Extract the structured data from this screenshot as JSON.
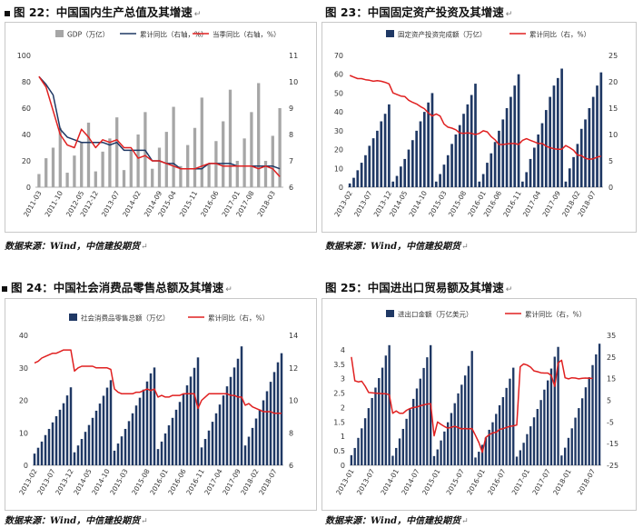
{
  "panels": [
    {
      "title": "图 22：中国国内生产总值及其增速",
      "source": "数据来源：Wind，中信建投期货",
      "chart_data": {
        "type": "bar",
        "title": "图 22：中国国内生产总值及其增速",
        "x_tick_labels": [
          "2011-03",
          "2011-10",
          "2012-05",
          "2012-12",
          "2013-07",
          "2014-02",
          "2014-09",
          "2015-04",
          "2015-11",
          "2016-06",
          "2017-01",
          "2017-08",
          "2018-03"
        ],
        "left_axis": {
          "ylim": [
            0,
            100
          ],
          "ticks": [
            0,
            20,
            40,
            60,
            80,
            100
          ]
        },
        "right_axis": {
          "ylim": [
            6,
            11
          ],
          "ticks": [
            6,
            7,
            8,
            9,
            10,
            11
          ]
        },
        "series": [
          {
            "name": "GDP（万亿）",
            "type": "bar",
            "axis": "left",
            "color": "#a6a6a6",
            "values": [
              10,
              22,
              30,
              45,
              11,
              24,
              34,
              49,
              12,
              27,
              37,
              53,
              13,
              28,
              40,
              57,
              14,
              30,
              42,
              61,
              16,
              32,
              45,
              68,
              18,
              35,
              50,
              74,
              20,
              37,
              57,
              79,
              20,
              39,
              60
            ]
          },
          {
            "name": "累计同比（右轴，%）",
            "type": "line",
            "axis": "right",
            "color": "#1f3864",
            "values": [
              10.2,
              9.9,
              9.5,
              8.2,
              7.9,
              7.8,
              7.7,
              7.7,
              7.7,
              7.7,
              7.6,
              7.7,
              7.4,
              7.4,
              7.4,
              7.4,
              7.0,
              7.0,
              6.9,
              6.9,
              6.7,
              6.7,
              6.7,
              6.7,
              6.9,
              6.9,
              6.9,
              6.9,
              6.8,
              6.8,
              6.8,
              6.8,
              6.8,
              6.8,
              6.7
            ]
          },
          {
            "name": "当季同比（右轴，%）",
            "type": "line",
            "axis": "right",
            "color": "#e02020",
            "values": [
              10.2,
              9.8,
              8.9,
              8.0,
              7.6,
              7.5,
              8.2,
              7.9,
              7.5,
              7.8,
              7.7,
              7.8,
              7.5,
              7.5,
              7.1,
              7.2,
              7.0,
              7.0,
              6.9,
              6.8,
              6.7,
              6.7,
              6.7,
              6.8,
              6.9,
              6.9,
              6.8,
              6.8,
              6.8,
              6.8,
              6.8,
              6.7,
              6.8,
              6.7,
              6.4
            ]
          }
        ]
      }
    },
    {
      "title": "图 23：中国固定资产投资及其增速",
      "source": "数据来源：Wind，中信建投期货",
      "chart_data": {
        "type": "bar",
        "title": "图 23：中国固定资产投资及其增速",
        "x_tick_labels": [
          "2013-02",
          "2013-07",
          "2013-12",
          "2014-05",
          "2014-10",
          "2015-03",
          "2015-08",
          "2016-01",
          "2016-06",
          "2016-11",
          "2017-04",
          "2017-09",
          "2018-02",
          "2018-07"
        ],
        "left_axis": {
          "ylim": [
            0,
            70
          ],
          "ticks": [
            0,
            10,
            20,
            30,
            40,
            50,
            60,
            70
          ]
        },
        "right_axis": {
          "ylim": [
            0,
            25
          ],
          "ticks": [
            0,
            5,
            10,
            15,
            20,
            25
          ]
        },
        "series": [
          {
            "name": "固定资产投资完成额（万亿）",
            "type": "bar",
            "axis": "left",
            "color": "#1f3864",
            "values": [
              2,
              5,
              9,
              13,
              17,
              22,
              26,
              30,
              35,
              39,
              44,
              3,
              6,
              11,
              15,
              20,
              25,
              30,
              35,
              40,
              45,
              50,
              3,
              7,
              12,
              17,
              23,
              28,
              33,
              39,
              44,
              49,
              55,
              3,
              7,
              13,
              18,
              24,
              30,
              36,
              42,
              48,
              54,
              60,
              3,
              8,
              15,
              21,
              28,
              34,
              41,
              48,
              54,
              58,
              63,
              3,
              10,
              16,
              23,
              31,
              36,
              42,
              48,
              54,
              61
            ]
          },
          {
            "name": "累计同比（右，%）",
            "type": "line",
            "axis": "right",
            "color": "#e02020",
            "values": [
              21.2,
              20.9,
              20.6,
              20.6,
              20.4,
              20.3,
              20.1,
              20.2,
              20.1,
              19.9,
              19.6,
              17.9,
              17.6,
              17.3,
              17.2,
              16.5,
              16.1,
              15.8,
              15.3,
              14.9,
              14.1,
              13.5,
              13.9,
              13.5,
              12.0,
              11.4,
              11.2,
              10.9,
              10.3,
              10.2,
              10.3,
              10.2,
              10.0,
              10.2,
              10.7,
              10.5,
              9.6,
              9.0,
              8.1,
              8.1,
              8.2,
              8.3,
              8.3,
              8.1,
              8.9,
              9.2,
              8.9,
              8.6,
              8.3,
              8.3,
              7.8,
              7.5,
              7.3,
              7.2,
              7.2,
              7.9,
              7.5,
              7.0,
              6.1,
              6.0,
              5.5,
              5.3,
              5.4,
              5.7,
              5.9
            ]
          }
        ]
      }
    },
    {
      "title": "图 24：中国社会消费品零售总额及其增速",
      "source": "数据来源：Wind，中信建投期货",
      "chart_data": {
        "type": "bar",
        "title": "图 24：中国社会消费品零售总额及其增速",
        "x_tick_labels": [
          "2013-02",
          "2013-07",
          "2013-12",
          "2014-05",
          "2014-10",
          "2015-03",
          "2015-08",
          "2016-01",
          "2016-06",
          "2016-11",
          "2017-04",
          "2017-09",
          "2018-02",
          "2018-07"
        ],
        "left_axis": {
          "ylim": [
            0,
            40
          ],
          "ticks": [
            0,
            10,
            20,
            30,
            40
          ]
        },
        "right_axis": {
          "ylim": [
            6,
            14
          ],
          "ticks": [
            6,
            8,
            10,
            12,
            14
          ]
        },
        "series": [
          {
            "name": "社会消费品零售总额（万亿）",
            "type": "bar",
            "axis": "left",
            "color": "#1f3864",
            "values": [
              3.6,
              5.4,
              7.3,
              9.3,
              11.2,
              13.2,
              15.1,
              17.1,
              19.1,
              21.5,
              24.0,
              4.0,
              6.1,
              8.1,
              10.3,
              12.4,
              14.6,
              16.8,
              19.0,
              21.4,
              23.9,
              26.2,
              4.5,
              6.7,
              8.9,
              11.2,
              13.6,
              16.0,
              18.4,
              20.8,
              23.3,
              25.8,
              28.3,
              30.1,
              5.0,
              7.3,
              9.8,
              12.3,
              14.6,
              17.1,
              19.5,
              22.0,
              24.6,
              27.3,
              30.0,
              33.2,
              5.5,
              8.1,
              10.7,
              13.4,
              16.0,
              18.7,
              21.5,
              24.3,
              27.2,
              30.1,
              32.8,
              36.6,
              6.1,
              8.8,
              11.5,
              14.4,
              17.2,
              20.0,
              22.8,
              25.7,
              28.7,
              31.7,
              34.5
            ]
          },
          {
            "name": "累计同比（右，%）",
            "type": "line",
            "axis": "right",
            "color": "#e02020",
            "values": [
              12.3,
              12.4,
              12.6,
              12.7,
              12.8,
              12.9,
              12.9,
              13.0,
              13.1,
              13.1,
              13.1,
              11.8,
              12.0,
              12.1,
              12.1,
              12.1,
              12.1,
              12.0,
              12.0,
              12.0,
              12.0,
              11.9,
              10.7,
              10.5,
              10.4,
              10.4,
              10.4,
              10.4,
              10.5,
              10.5,
              10.6,
              10.7,
              10.6,
              10.7,
              10.2,
              10.3,
              10.2,
              10.2,
              10.3,
              10.3,
              10.3,
              10.4,
              10.4,
              10.4,
              10.4,
              9.5,
              10.0,
              10.2,
              10.4,
              10.4,
              10.4,
              10.4,
              10.4,
              10.4,
              10.3,
              10.3,
              10.2,
              10.2,
              9.7,
              9.8,
              9.6,
              9.5,
              9.4,
              9.3,
              9.3,
              9.3,
              9.2,
              9.2,
              9.2
            ]
          }
        ]
      }
    },
    {
      "title": "图 25：中国进出口贸易额及其增速",
      "source": "数据来源：Wind，中信建投期货",
      "chart_data": {
        "type": "bar",
        "title": "图 25：中国进出口贸易额及其增速",
        "x_tick_labels": [
          "2013-01",
          "2013-07",
          "2014-01",
          "2014-07",
          "2015-01",
          "2015-07",
          "2016-01",
          "2016-07",
          "2017-01",
          "2017-07",
          "2018-01",
          "2018-07"
        ],
        "left_axis": {
          "ylim": [
            0,
            4.5
          ],
          "ticks": [
            0,
            0.5,
            1,
            1.5,
            2,
            2.5,
            3,
            3.5,
            4
          ]
        },
        "right_axis": {
          "ylim": [
            -25,
            35
          ],
          "ticks": [
            -25,
            -15,
            -5,
            5,
            15,
            25,
            35
          ]
        },
        "series": [
          {
            "name": "进出口金额（万亿美元）",
            "type": "bar",
            "axis": "left",
            "color": "#1f3864",
            "values": [
              0.35,
              0.6,
              0.95,
              1.28,
              1.63,
              1.98,
              2.33,
              2.69,
              3.02,
              3.38,
              3.8,
              4.16,
              0.33,
              0.6,
              0.93,
              1.26,
              1.61,
              1.94,
              2.3,
              2.66,
              3.0,
              3.37,
              3.74,
              4.16,
              0.32,
              0.55,
              0.86,
              1.17,
              1.49,
              1.81,
              2.15,
              2.49,
              2.79,
              3.11,
              3.44,
              3.96,
              0.27,
              0.47,
              0.71,
              0.96,
              1.23,
              1.49,
              1.78,
              2.08,
              2.36,
              2.68,
              3.0,
              3.38,
              0.3,
              0.52,
              0.78,
              1.08,
              1.35,
              1.66,
              1.95,
              2.26,
              2.62,
              2.94,
              3.35,
              3.76,
              4.1,
              0.34,
              0.61,
              0.95,
              1.28,
              1.65,
              1.98,
              2.32,
              2.7,
              3.05,
              3.47,
              3.84,
              4.21
            ]
          },
          {
            "name": "累计同比（右，%）",
            "type": "line",
            "axis": "right",
            "color": "#e02020",
            "values": [
              25.0,
              14.0,
              13.5,
              13.8,
              11.5,
              8.6,
              8.5,
              8.3,
              8.2,
              8.0,
              8.0,
              7.6,
              -1.0,
              0.1,
              -1.0,
              -1.0,
              0.4,
              1.2,
              1.7,
              1.9,
              2.5,
              2.9,
              3.3,
              3.4,
              -11.4,
              -5.0,
              -6.1,
              -7.1,
              -7.9,
              -7.4,
              -7.0,
              -7.6,
              -8.2,
              -8.0,
              -8.2,
              -8.0,
              -11.2,
              -14.5,
              -19.0,
              -12.1,
              -10.9,
              -10.0,
              -9.8,
              -8.4,
              -8.1,
              -7.5,
              -7.0,
              -6.8,
              -6.4,
              20.5,
              21.8,
              21.3,
              20.3,
              18.6,
              18.2,
              17.7,
              17.6,
              17.6,
              16.5,
              11.4,
              22.3,
              23.5,
              15.4,
              14.9,
              15.4,
              15.3,
              14.9,
              15.2,
              15.3,
              15.2,
              15.1
            ]
          }
        ]
      }
    }
  ]
}
